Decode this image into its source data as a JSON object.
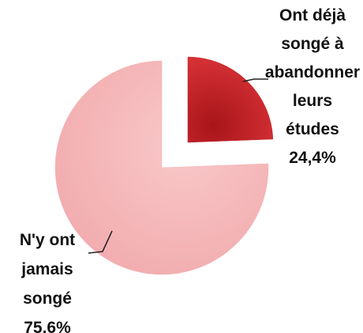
{
  "chart_data": {
    "type": "pie",
    "categories": [
      "Ont déjà songé à abandon­ner leurs études",
      "N'y ont jamais songé"
    ],
    "values": [
      24.4,
      75.6
    ],
    "value_labels": [
      "24,4%",
      "75,6%"
    ],
    "colors": [
      "#c8262c",
      "#f5b3b5"
    ]
  }
}
